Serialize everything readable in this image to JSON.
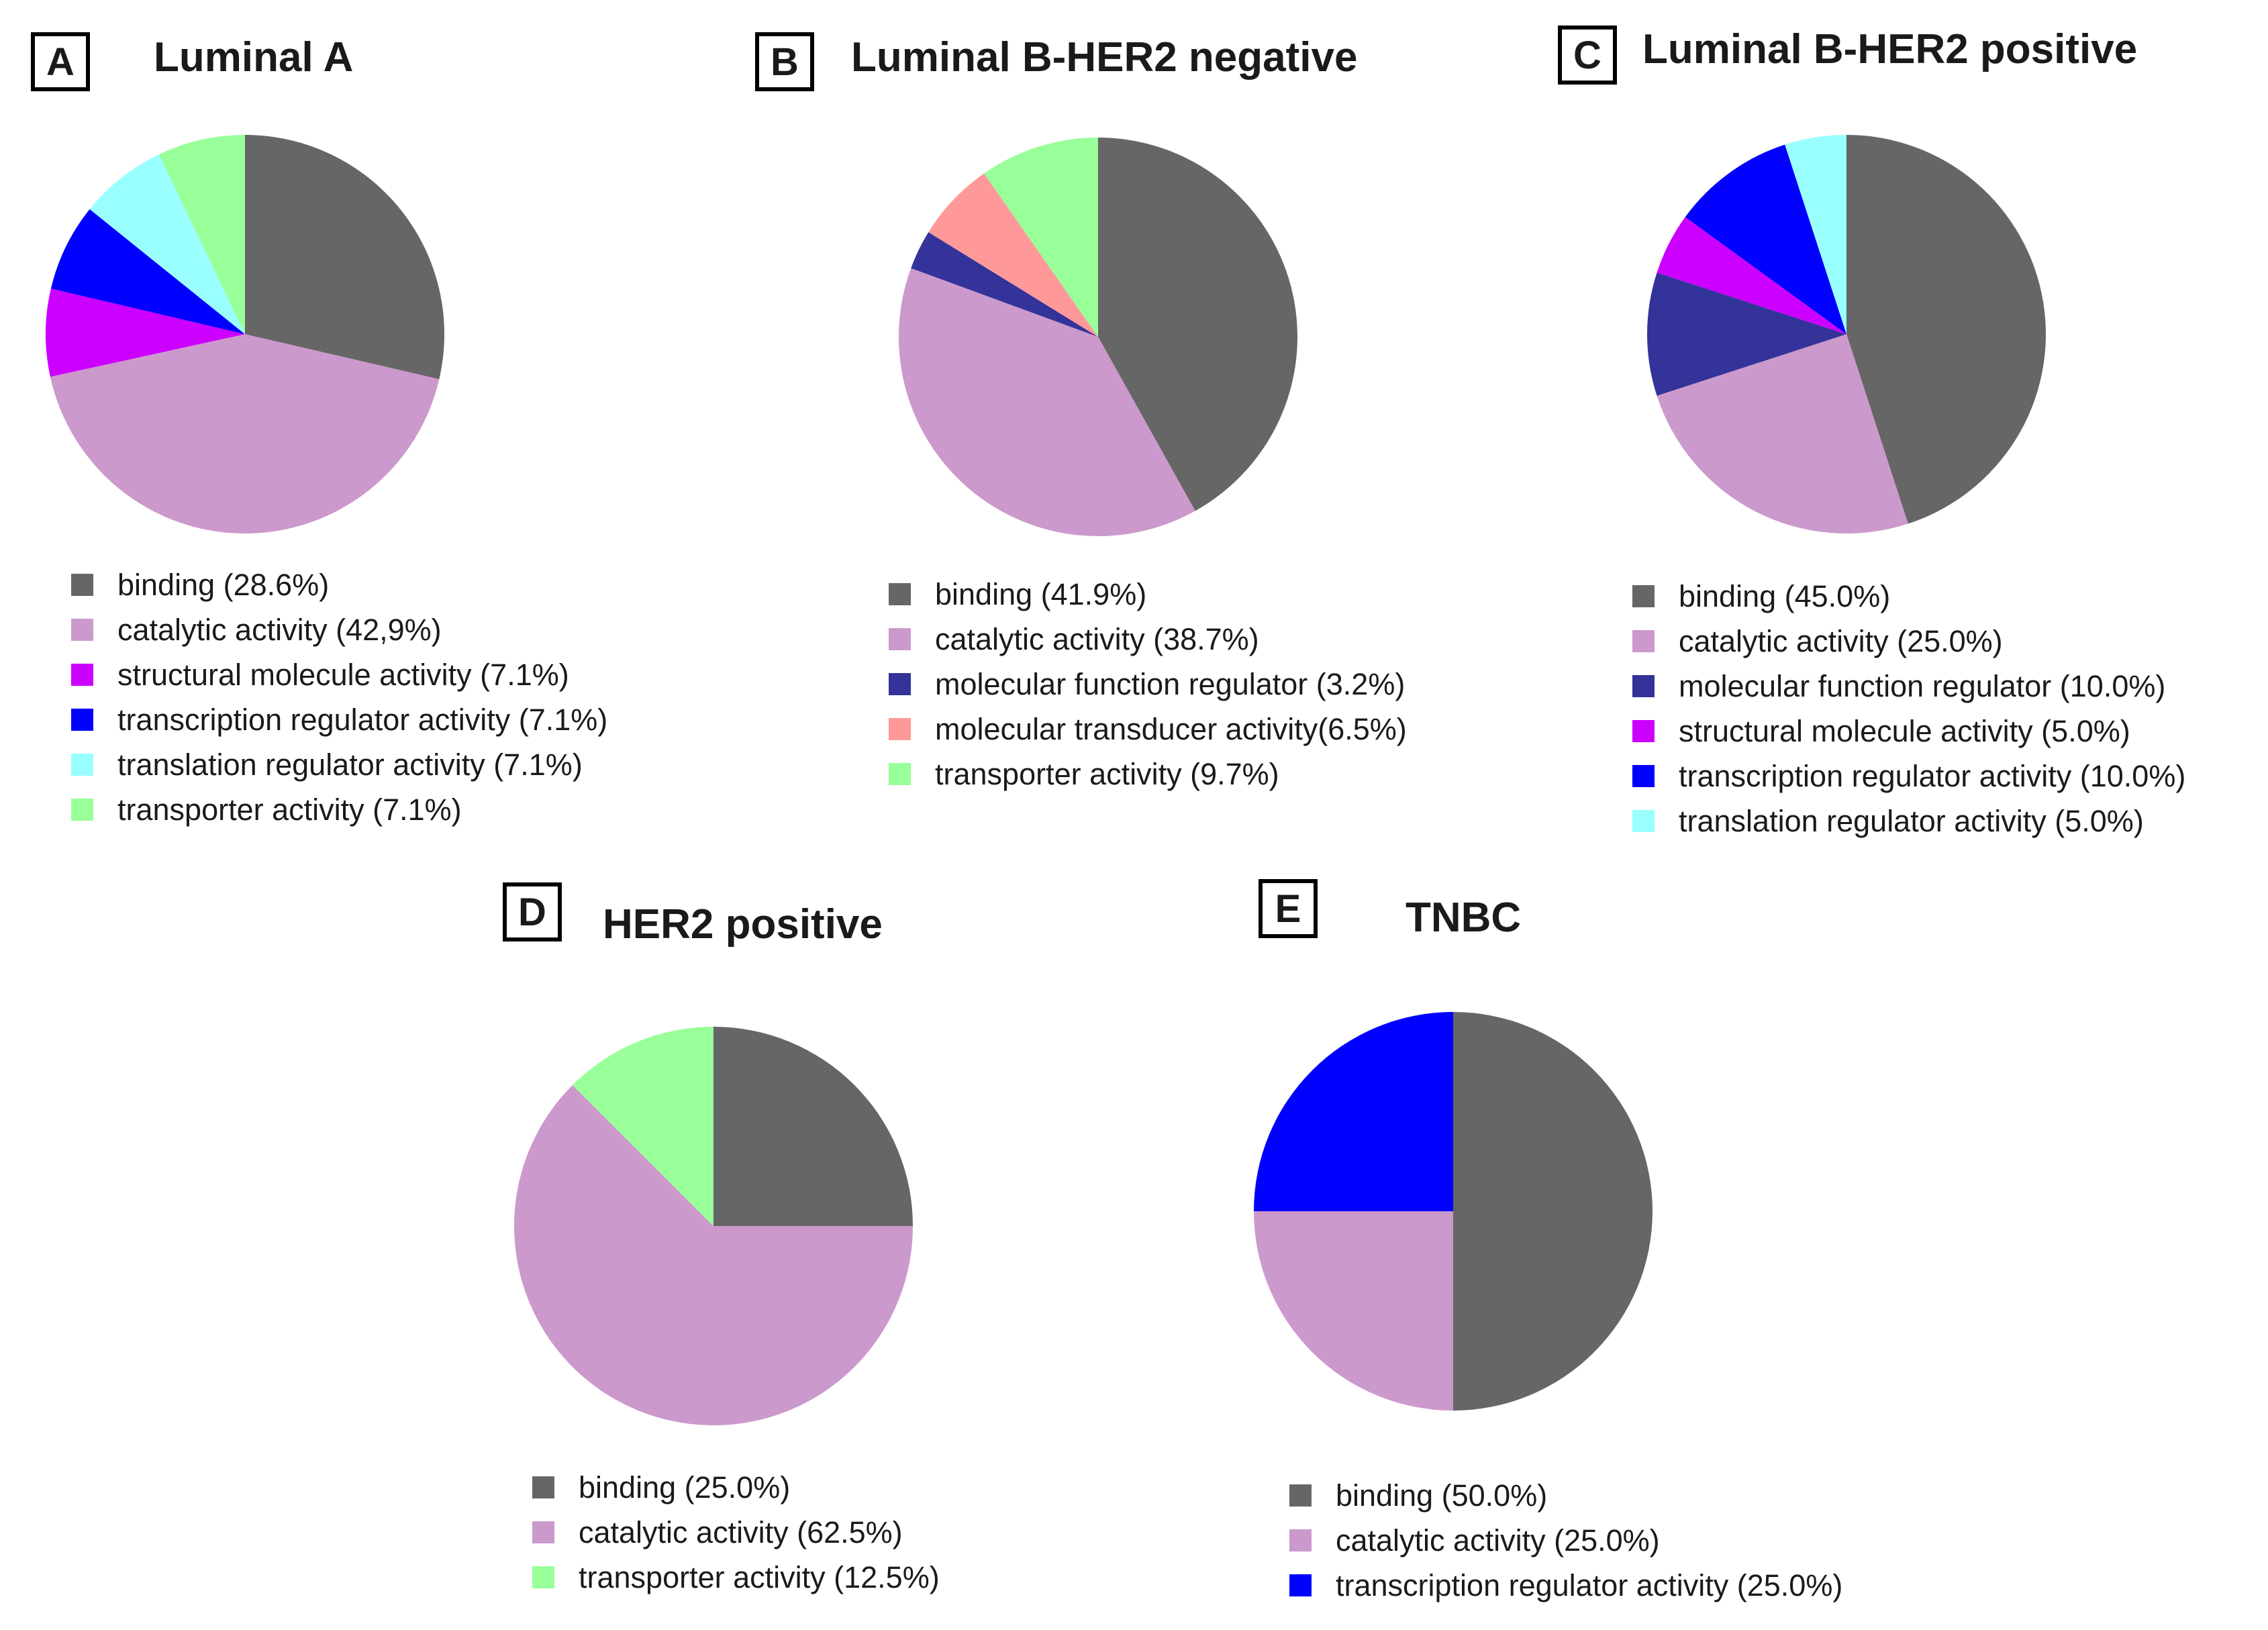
{
  "chart_data": [
    {
      "type": "pie",
      "panel": "A",
      "title": "Luminal A",
      "slices": [
        {
          "label": "binding (28.6%)",
          "value": 28.6,
          "color": "#666666"
        },
        {
          "label": "catalytic activity (42,9%)",
          "value": 42.9,
          "color": "#cc99cc"
        },
        {
          "label": "structural molecule activity (7.1%)",
          "value": 7.1,
          "color": "#cc00ff"
        },
        {
          "label": "transcription regulator activity (7.1%)",
          "value": 7.1,
          "color": "#0000ff"
        },
        {
          "label": "translation regulator activity (7.1%)",
          "value": 7.1,
          "color": "#99ffff"
        },
        {
          "label": "transporter activity (7.1%)",
          "value": 7.1,
          "color": "#99ff99"
        }
      ]
    },
    {
      "type": "pie",
      "panel": "B",
      "title": "Luminal B-HER2 negative",
      "slices": [
        {
          "label": "binding (41.9%)",
          "value": 41.9,
          "color": "#666666"
        },
        {
          "label": "catalytic activity (38.7%)",
          "value": 38.7,
          "color": "#cc99cc"
        },
        {
          "label": "molecular function regulator (3.2%)",
          "value": 3.2,
          "color": "#333399"
        },
        {
          "label": "molecular transducer activity(6.5%)",
          "value": 6.5,
          "color": "#ff9999"
        },
        {
          "label": "transporter activity (9.7%)",
          "value": 9.7,
          "color": "#99ff99"
        }
      ]
    },
    {
      "type": "pie",
      "panel": "C",
      "title": "Luminal B-HER2 positive",
      "slices": [
        {
          "label": "binding (45.0%)",
          "value": 45.0,
          "color": "#666666"
        },
        {
          "label": "catalytic activity (25.0%)",
          "value": 25.0,
          "color": "#cc99cc"
        },
        {
          "label": "molecular function regulator (10.0%)",
          "value": 10.0,
          "color": "#333399"
        },
        {
          "label": "structural molecule activity (5.0%)",
          "value": 5.0,
          "color": "#cc00ff"
        },
        {
          "label": "transcription regulator activity (10.0%)",
          "value": 10.0,
          "color": "#0000ff"
        },
        {
          "label": "translation regulator activity (5.0%)",
          "value": 5.0,
          "color": "#99ffff"
        }
      ]
    },
    {
      "type": "pie",
      "panel": "D",
      "title": "HER2 positive",
      "slices": [
        {
          "label": "binding (25.0%)",
          "value": 25.0,
          "color": "#666666"
        },
        {
          "label": "catalytic activity (62.5%)",
          "value": 62.5,
          "color": "#cc99cc"
        },
        {
          "label": "transporter activity (12.5%)",
          "value": 12.5,
          "color": "#99ff99"
        }
      ]
    },
    {
      "type": "pie",
      "panel": "E",
      "title": "TNBC",
      "slices": [
        {
          "label": "binding (50.0%)",
          "value": 50.0,
          "color": "#666666"
        },
        {
          "label": "catalytic activity (25.0%)",
          "value": 25.0,
          "color": "#cc99cc"
        },
        {
          "label": "transcription regulator activity (25.0%)",
          "value": 25.0,
          "color": "#0000ff"
        }
      ]
    }
  ]
}
